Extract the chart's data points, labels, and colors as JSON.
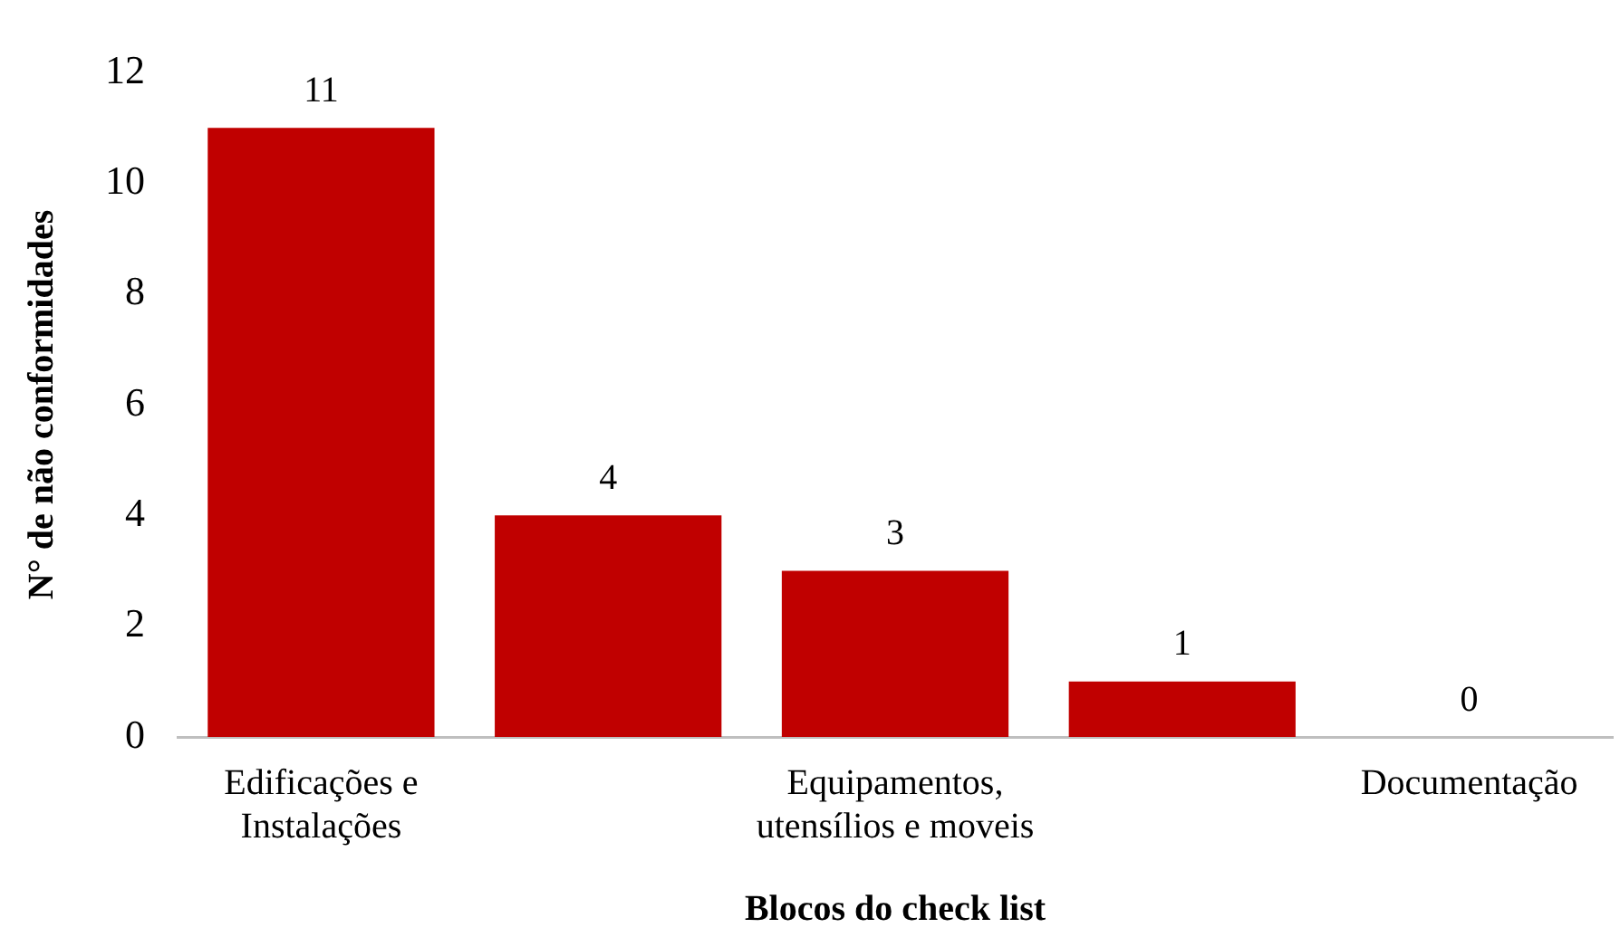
{
  "chart_data": {
    "type": "bar",
    "xlabel": "Blocos do check list",
    "ylabel": "N° de não conformidades",
    "categories": [
      "Edificações e Instalações",
      null,
      "Equipamentos, utensílios e moveis",
      null,
      "Documentação"
    ],
    "values": [
      11,
      4,
      3,
      1,
      0
    ],
    "color": "#c00000",
    "ylim": [
      0,
      12
    ],
    "yticks": [
      0,
      2,
      4,
      6,
      8,
      10,
      12
    ],
    "grid": false,
    "legend": false,
    "data_labels": true
  }
}
